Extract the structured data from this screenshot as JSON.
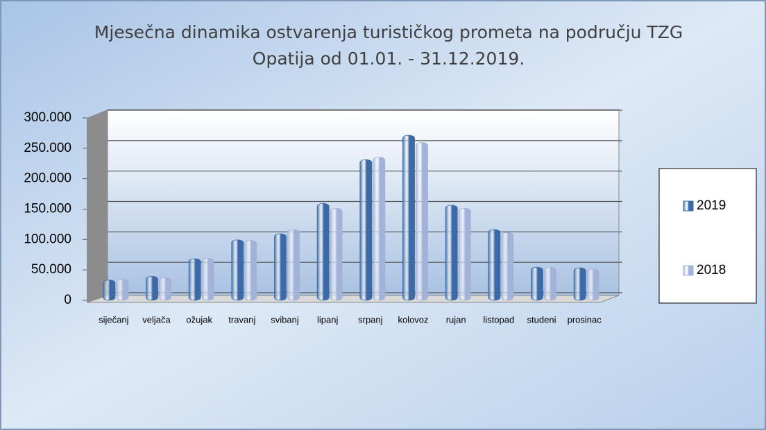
{
  "chart_data": {
    "type": "bar",
    "title": [
      "Mjesečna dinamika ostvarenja turističkog prometa na području TZG",
      "Opatija od 01.01. - 31.12.2019."
    ],
    "categories": [
      "siječanj",
      "veljača",
      "ožujak",
      "travanj",
      "svibanj",
      "lipanj",
      "srpanj",
      "kolovoz",
      "rujan",
      "listopad",
      "studeni",
      "prosinac"
    ],
    "series": [
      {
        "name": "2019",
        "color": "#3b6aa6",
        "values": [
          22000,
          28000,
          57000,
          88000,
          98000,
          148000,
          220000,
          260000,
          145000,
          105000,
          43000,
          42000
        ]
      },
      {
        "name": "2018",
        "color": "#a3b2d8",
        "values": [
          23000,
          26000,
          58000,
          87000,
          105000,
          140000,
          224000,
          248000,
          140000,
          100000,
          43000,
          40000
        ]
      }
    ],
    "ylim": [
      0,
      300000
    ],
    "yticks": [
      0,
      {
        "value": 50000,
        "label": "50.000"
      },
      {
        "value": 100000,
        "label": "100.000"
      },
      {
        "value": 150000,
        "label": "150.000"
      },
      {
        "value": 200000,
        "label": "200.000"
      },
      {
        "value": 250000,
        "label": "250.000"
      },
      {
        "value": 300000,
        "label": "300.000"
      }
    ],
    "grid": true,
    "legend": "right"
  }
}
